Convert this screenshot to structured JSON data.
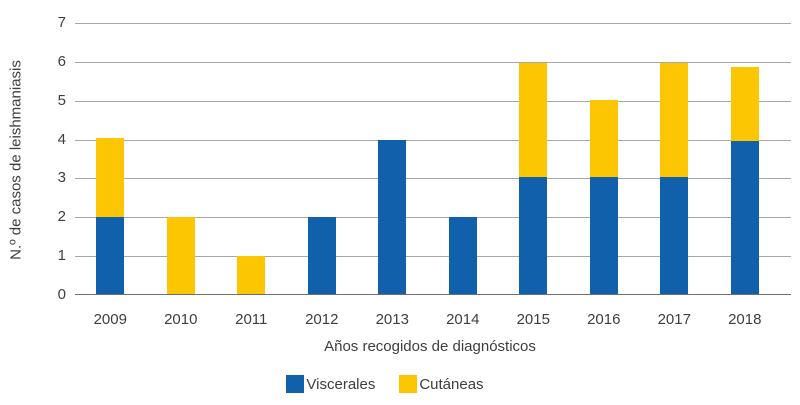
{
  "chart_data": {
    "type": "bar",
    "stacked": true,
    "title": "",
    "xlabel": "Años recogidos de diagnósticos",
    "ylabel": "N.º de casos de leishmaniasis",
    "categories": [
      "2009",
      "2010",
      "2011",
      "2012",
      "2013",
      "2014",
      "2015",
      "2016",
      "2017",
      "2018"
    ],
    "series": [
      {
        "name": "Viscerales",
        "color": "#1160AC",
        "values": [
          2,
          0,
          0,
          2,
          4,
          2,
          3.05,
          3.05,
          3.05,
          3.97
        ]
      },
      {
        "name": "Cutáneas",
        "color": "#FCC602",
        "values": [
          2.05,
          2,
          1,
          0,
          0,
          0,
          2.93,
          1.96,
          2.93,
          1.9
        ]
      }
    ],
    "ylim": [
      0,
      7
    ],
    "yticks": [
      0,
      1,
      2,
      3,
      4,
      5,
      6,
      7
    ],
    "grid": true,
    "legend_position": "bottom"
  },
  "colors": {
    "background": "#FFFFFF",
    "text": "#3E3E3D",
    "gridline": "#A8A8A8",
    "axis_line": "#6E6E6E",
    "viscerales": "#1160AC",
    "cutaneas": "#FCC602"
  }
}
